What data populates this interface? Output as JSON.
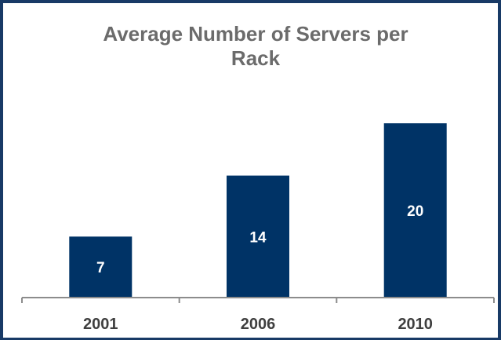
{
  "chart_data": {
    "type": "bar",
    "title": "Average Number of Servers per Rack",
    "title_lines": [
      "Average Number of Servers per",
      "Rack"
    ],
    "categories": [
      "2001",
      "2006",
      "2010"
    ],
    "values": [
      7,
      14,
      20
    ],
    "value_labels": [
      "7",
      "14",
      "20"
    ],
    "xlabel": "",
    "ylabel": "",
    "ylim": [
      0,
      20
    ],
    "grid": false,
    "legend": "none",
    "colors": {
      "bar": "#003366",
      "axis": "#8c8c8c",
      "title": "#6b6b6b",
      "tick_label": "#3f3f3f",
      "value_label": "#ffffff",
      "frame": "#183a66"
    }
  }
}
